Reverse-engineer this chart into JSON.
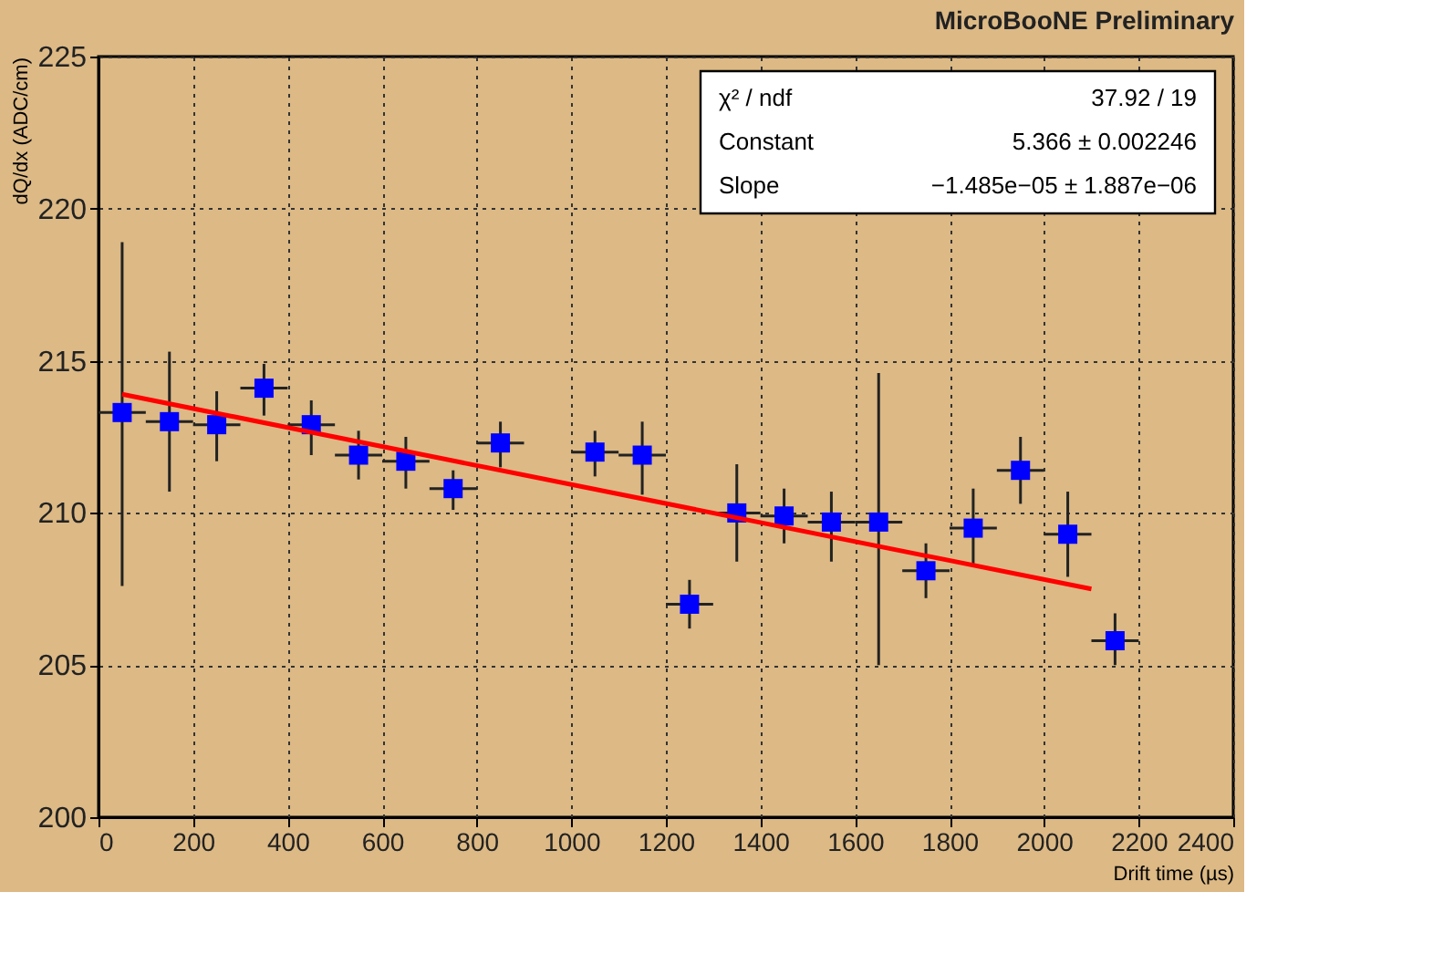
{
  "chart_data": {
    "type": "scatter",
    "title": "MicroBooNE Preliminary",
    "xlabel": "Drift time (µs)",
    "ylabel": "dQ/dx (ADC/cm)",
    "x": [
      50,
      150,
      250,
      350,
      450,
      550,
      650,
      750,
      850,
      1050,
      1150,
      1250,
      1350,
      1450,
      1550,
      1650,
      1750,
      1850,
      1950,
      2050,
      2150
    ],
    "series": [
      {
        "color": "#0000ff",
        "marker": "square",
        "values": [
          213.3,
          213.0,
          212.9,
          214.1,
          212.9,
          211.9,
          211.7,
          210.8,
          212.3,
          212.0,
          211.9,
          207.0,
          210.0,
          209.9,
          209.7,
          209.7,
          208.1,
          209.5,
          211.4,
          209.3,
          205.8
        ],
        "errors": [
          [
            207.6,
            218.9
          ],
          [
            210.7,
            215.3
          ],
          [
            211.7,
            214.0
          ],
          [
            213.2,
            214.9
          ],
          [
            211.9,
            213.7
          ],
          [
            211.1,
            212.7
          ],
          [
            210.8,
            212.5
          ],
          [
            210.1,
            211.4
          ],
          [
            211.5,
            213.0
          ],
          [
            211.2,
            212.7
          ],
          [
            210.6,
            213.0
          ],
          [
            206.2,
            207.8
          ],
          [
            208.4,
            211.6
          ],
          [
            209.0,
            210.8
          ],
          [
            208.4,
            210.7
          ],
          [
            205.0,
            214.6
          ],
          [
            207.2,
            209.0
          ],
          [
            208.3,
            210.8
          ],
          [
            210.3,
            212.5
          ],
          [
            207.9,
            210.7
          ],
          [
            205.0,
            206.7
          ]
        ],
        "xerrors": [
          50,
          50,
          50,
          50,
          50,
          50,
          50,
          50,
          50,
          50,
          50,
          50,
          50,
          50,
          50,
          50,
          50,
          50,
          50,
          50,
          50
        ]
      },
      {
        "type": "line",
        "color": "#ff0000",
        "line_style": "solid",
        "x": [
          50,
          2100
        ],
        "values": [
          213.9,
          207.5
        ]
      }
    ],
    "xlim": [
      0,
      2400
    ],
    "xticks": [
      0,
      200,
      400,
      600,
      800,
      1000,
      1200,
      1400,
      1600,
      1800,
      2000,
      2200,
      2400
    ],
    "ylim": [
      200,
      225
    ],
    "yticks": [
      200,
      205,
      210,
      215,
      220,
      225
    ],
    "grid": true,
    "annotations": [
      "χ² / ndf",
      "37.92 / 19",
      "Constant",
      "5.366 ± 0.002246",
      "Slope",
      "−1.485e−05 ± 1.887e−06"
    ]
  }
}
